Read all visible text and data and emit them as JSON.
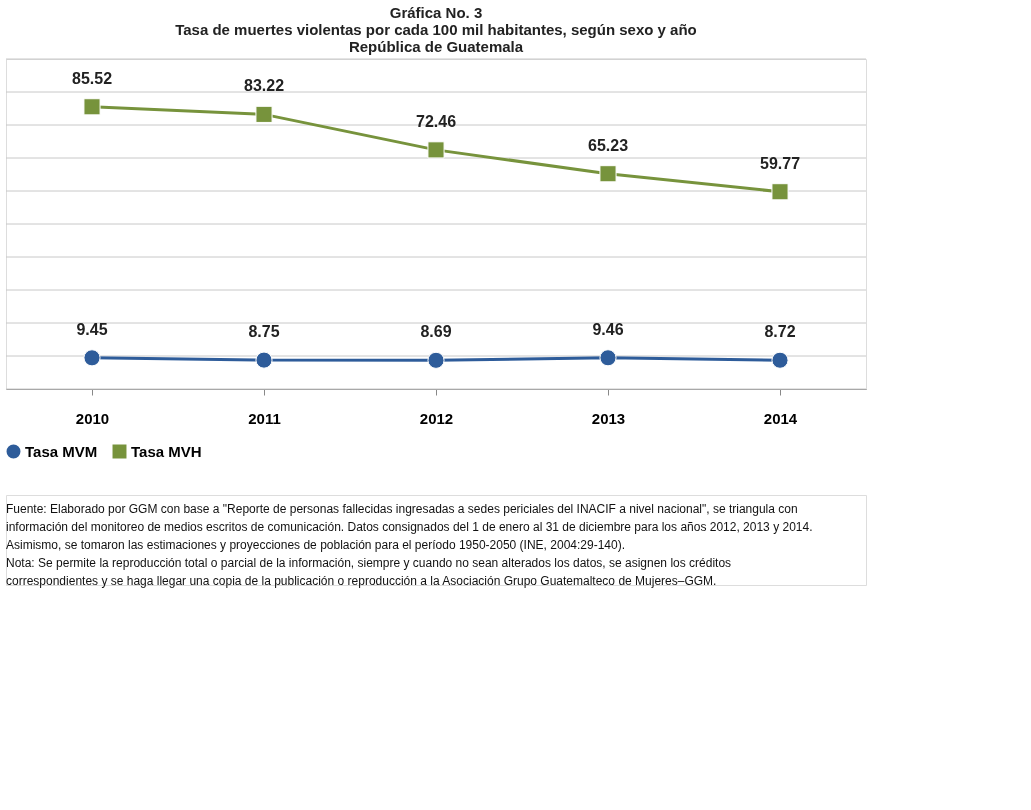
{
  "chart_data": {
    "type": "line",
    "title": "Gráfica No. 3\nTasa de muertes violentas por cada 100 mil habitantes, según sexo y año\nRepública de Guatemala",
    "categories": [
      "2010",
      "2011",
      "2012",
      "2013",
      "2014"
    ],
    "series": [
      {
        "name": "Tasa MVM",
        "color": "#2e5c9a",
        "marker": "circle",
        "values": [
          9.45,
          8.75,
          8.69,
          9.46,
          8.72
        ]
      },
      {
        "name": "Tasa MVH",
        "color": "#77933c",
        "marker": "square",
        "values": [
          85.52,
          83.22,
          72.46,
          65.23,
          59.77
        ]
      }
    ],
    "ylim": [
      0,
      100
    ],
    "yticks": [
      {
        "value": 0,
        "label": null
      },
      {
        "value": 10,
        "label": null
      },
      {
        "value": 20,
        "label": null
      },
      {
        "value": 30,
        "label": null
      },
      {
        "value": 40,
        "label": null
      },
      {
        "value": 50,
        "label": null
      },
      {
        "value": 60,
        "label": null
      },
      {
        "value": 70,
        "label": null
      },
      {
        "value": 80,
        "label": null
      },
      {
        "value": 90,
        "label": null
      },
      {
        "value": 100,
        "label": null
      }
    ],
    "tick_labels": "x",
    "grid": "y",
    "legend": "bottom",
    "data_labels": true,
    "line_style": "solid",
    "annotations": [
      "Fuente: Elaborado por GGM con base a \"Reporte de personas fallecidas ingresadas a sedes periciales del INACIF a nivel nacional\", se triangula con información del monitoreo de medios escritos de comunicación. Datos consignados del 1 de enero al 31 de diciembre para los años 2012, 2013 y 2014. Asimismo, se tomaron las estimaciones y proyecciones de población para el período 1950-2050 (INE, 2004:29-140).",
      "Nota: Se permite la reproducción total o parcial de la información, siempre y cuando no sean alterados los datos, se asignen los créditos correspondientes y se haga llegar una copia de la publicación o reproducción a la Asociación Grupo Guatemalteco de Mujeres–GGM."
    ]
  }
}
